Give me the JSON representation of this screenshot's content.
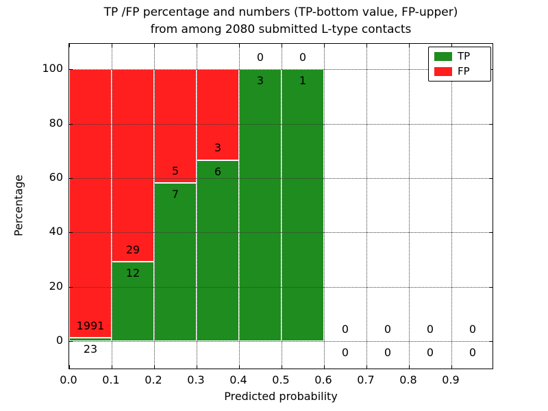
{
  "chart_data": {
    "type": "bar",
    "subtype": "stacked-percentage-histogram",
    "title": "TP /FP percentage and numbers (TP-bottom value, FP-upper)\nfrom among 2080 submitted L-type contacts",
    "xlabel": "Predicted probability",
    "ylabel": "Percentage",
    "total_contacts": 2080,
    "bin_width": 0.1,
    "xlim": [
      0.0,
      1.0
    ],
    "ylim": [
      -10.6,
      109.4
    ],
    "grid": "dotted",
    "x_ticks": [
      "0.0",
      "0.1",
      "0.2",
      "0.3",
      "0.4",
      "0.5",
      "0.6",
      "0.7",
      "0.8",
      "0.9"
    ],
    "y_ticks": [
      0,
      20,
      40,
      60,
      80,
      100
    ],
    "series": [
      {
        "name": "TP",
        "color": "#1e8c1e",
        "values": [
          23,
          12,
          7,
          6,
          3,
          1,
          0,
          0,
          0,
          0
        ]
      },
      {
        "name": "FP",
        "color": "#ff1f1f",
        "values": [
          1991,
          29,
          5,
          3,
          0,
          0,
          0,
          0,
          0,
          0
        ]
      }
    ],
    "bars": [
      {
        "x0": 0.0,
        "x1": 0.1,
        "tp": 23,
        "fp": 1991
      },
      {
        "x0": 0.1,
        "x1": 0.2,
        "tp": 12,
        "fp": 29
      },
      {
        "x0": 0.2,
        "x1": 0.3,
        "tp": 7,
        "fp": 5
      },
      {
        "x0": 0.3,
        "x1": 0.4,
        "tp": 6,
        "fp": 3
      },
      {
        "x0": 0.4,
        "x1": 0.5,
        "tp": 3,
        "fp": 0
      },
      {
        "x0": 0.5,
        "x1": 0.6,
        "tp": 1,
        "fp": 0
      },
      {
        "x0": 0.6,
        "x1": 0.7,
        "tp": 0,
        "fp": 0
      },
      {
        "x0": 0.7,
        "x1": 0.8,
        "tp": 0,
        "fp": 0
      },
      {
        "x0": 0.8,
        "x1": 0.9,
        "tp": 0,
        "fp": 0
      },
      {
        "x0": 0.9,
        "x1": 1.0,
        "tp": 0,
        "fp": 0
      }
    ],
    "legend": {
      "position": "upper-right",
      "entries": [
        {
          "label": "TP",
          "color": "#1e8c1e"
        },
        {
          "label": "FP",
          "color": "#ff1f1f"
        }
      ]
    }
  }
}
